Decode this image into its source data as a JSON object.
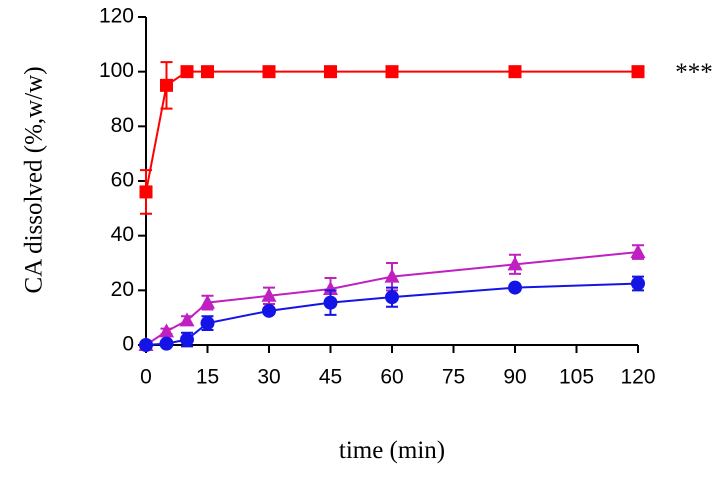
{
  "chart_data": {
    "type": "line",
    "y_label": "CA dissolved (%,w/w)",
    "x_label": "time (min)",
    "annotation": "***",
    "x": [
      0,
      5,
      10,
      15,
      30,
      45,
      60,
      90,
      120
    ],
    "series": [
      {
        "color": "#ff0000",
        "marker": "square",
        "values": [
          56,
          95,
          100,
          100,
          100,
          100,
          100,
          100,
          100
        ],
        "errors": [
          8,
          8.5,
          0,
          0,
          0,
          0,
          0,
          0,
          0
        ]
      },
      {
        "color": "#c020c0",
        "marker": "triangle",
        "values": [
          0,
          5,
          9,
          15.5,
          18,
          20.5,
          25,
          29.5,
          34
        ],
        "errors": [
          0,
          1,
          1.5,
          2.5,
          3,
          4,
          5,
          3.5,
          2.5
        ]
      },
      {
        "color": "#1414e6",
        "marker": "circle",
        "values": [
          0,
          0.5,
          2,
          8,
          12.5,
          15.5,
          17.5,
          21,
          22.5
        ],
        "errors": [
          0,
          1,
          2.5,
          2.5,
          1,
          4.5,
          3.5,
          1,
          2.5
        ]
      }
    ],
    "xlim": [
      0,
      120
    ],
    "xticks": [
      0,
      15,
      30,
      45,
      60,
      75,
      90,
      105,
      120
    ],
    "ylim": [
      0,
      120
    ],
    "yticks": [
      0,
      20,
      40,
      60,
      80,
      100,
      120
    ],
    "grid": false
  }
}
